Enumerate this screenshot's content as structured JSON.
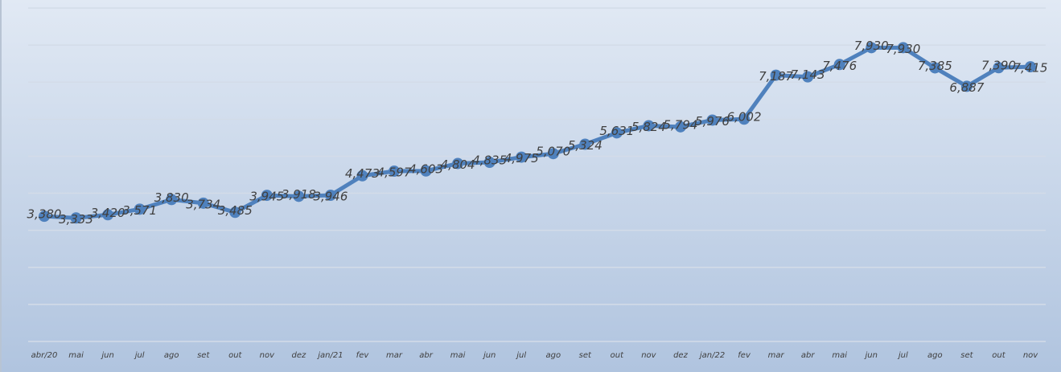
{
  "chart_data": {
    "type": "line",
    "categories": [
      "abr/20",
      "mai",
      "jun",
      "jul",
      "ago",
      "set",
      "out",
      "nov",
      "dez",
      "jan/21",
      "fev",
      "mar",
      "abr",
      "mai",
      "jun",
      "jul",
      "ago",
      "set",
      "out",
      "nov",
      "dez",
      "jan/22",
      "fev",
      "mar",
      "abr",
      "mai",
      "jun",
      "jul",
      "ago",
      "set",
      "out",
      "nov"
    ],
    "series": [
      {
        "color": "#4f81bd",
        "values": [
          3380,
          3333,
          3420,
          3571,
          3830,
          3734,
          3485,
          3945,
          3918,
          3946,
          4473,
          4597,
          4603,
          4804,
          4835,
          4975,
          5070,
          5324,
          5631,
          5824,
          5794,
          5976,
          6002,
          7187,
          7143,
          7476,
          7930,
          7930,
          7385,
          6887,
          7390,
          7415
        ],
        "value_labels": [
          "3,380",
          "3,333",
          "3,420",
          "3,571",
          "3,830",
          "3,734",
          "3,485",
          "3,945",
          "3,918",
          "3,946",
          "4,473",
          "4,597",
          "4,603",
          "4,804",
          "4,835",
          "4,975",
          "5,070",
          "5,324",
          "5,631",
          "5,824",
          "5,794",
          "5,976",
          "6,002",
          "7,187",
          "7,143",
          "7,476",
          "7,930",
          "7,930",
          "7,385",
          "6,887",
          "7,390",
          "7,415"
        ]
      }
    ],
    "ylim": [
      0,
      9000
    ],
    "yticks": [
      0,
      1000,
      2000,
      3000,
      4000,
      5000,
      6000,
      7000,
      8000,
      9000
    ],
    "grid": true
  }
}
